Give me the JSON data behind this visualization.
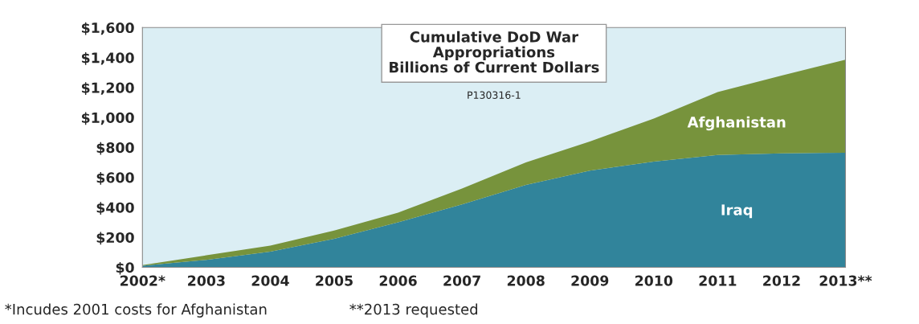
{
  "chart_data": {
    "type": "area",
    "stacked": true,
    "title": "Cumulative DoD War\nAppropriations\nBillions of Current Dollars",
    "subtitle": "P130316-1",
    "x": [
      2002,
      2003,
      2004,
      2005,
      2006,
      2007,
      2008,
      2009,
      2010,
      2011,
      2012,
      2013
    ],
    "series": [
      {
        "name": "Iraq",
        "color": "#31849b",
        "values": [
          10,
          50,
          105,
          190,
          300,
          420,
          550,
          645,
          705,
          750,
          760,
          765
        ]
      },
      {
        "name": "Afghanistan",
        "color": "#77933c",
        "values": [
          5,
          30,
          40,
          55,
          65,
          105,
          150,
          195,
          288,
          420,
          520,
          620
        ]
      }
    ],
    "xlim": [
      2002,
      2013
    ],
    "xticks": [
      {
        "value": 2002,
        "label": "2002*"
      },
      2003,
      2004,
      2005,
      2006,
      2007,
      2008,
      2009,
      2010,
      2011,
      2012,
      {
        "value": 2013,
        "label": "2013**"
      }
    ],
    "ylim": [
      0,
      1600
    ],
    "yticks": [
      {
        "value": 0,
        "label": "$0"
      },
      {
        "value": 200,
        "label": "$200"
      },
      {
        "value": 400,
        "label": "$400"
      },
      {
        "value": 600,
        "label": "$600"
      },
      {
        "value": 800,
        "label": "$800"
      },
      {
        "value": 1000,
        "label": "$1,000"
      },
      {
        "value": 1200,
        "label": "$1,200"
      },
      {
        "value": 1400,
        "label": "$1,400"
      },
      {
        "value": 1600,
        "label": "$1,600"
      }
    ],
    "grid": false,
    "legend": false,
    "annotations": [
      "*Incudes 2001 costs for Afghanistan",
      "**2013 requested"
    ]
  }
}
